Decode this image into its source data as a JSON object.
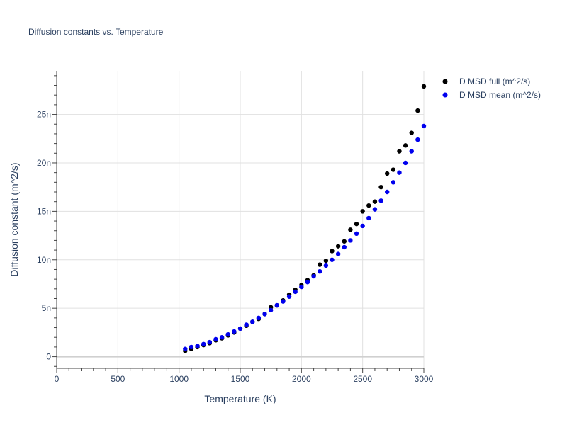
{
  "chart_data": {
    "type": "scatter",
    "title": "Diffusion constants vs. Temperature",
    "xlabel": "Temperature (K)",
    "ylabel": "Diffusion constant (m^2/s)",
    "xlim": [
      0,
      3000
    ],
    "ylim": [
      -1.2e-09,
      2.95e-08
    ],
    "x_ticks": [
      0,
      500,
      1000,
      1500,
      2000,
      2500,
      3000
    ],
    "x_tick_labels": [
      "0",
      "500",
      "1000",
      "1500",
      "2000",
      "2500",
      "3000"
    ],
    "y_ticks": [
      0,
      5e-09,
      1e-08,
      1.5e-08,
      2e-08,
      2.5e-08
    ],
    "y_tick_labels": [
      "0",
      "5n",
      "10n",
      "15n",
      "20n",
      "25n"
    ],
    "grid": true,
    "legend_position": "top-right",
    "series": [
      {
        "name": "D MSD full (m^2/s)",
        "color": "#000000",
        "x": [
          1050,
          1100,
          1150,
          1200,
          1250,
          1300,
          1350,
          1400,
          1450,
          1500,
          1550,
          1600,
          1650,
          1700,
          1750,
          1800,
          1850,
          1900,
          1950,
          2000,
          2050,
          2100,
          2150,
          2200,
          2250,
          2300,
          2350,
          2400,
          2450,
          2500,
          2550,
          2600,
          2650,
          2700,
          2750,
          2800,
          2850,
          2900,
          2950,
          3000
        ],
        "y": [
          6e-10,
          8e-10,
          1e-09,
          1.2e-09,
          1.4e-09,
          1.7e-09,
          1.9e-09,
          2.2e-09,
          2.5e-09,
          2.9e-09,
          3.2e-09,
          3.6e-09,
          3.9e-09,
          4.4e-09,
          5.1e-09,
          5.3e-09,
          5.8e-09,
          6.4e-09,
          6.9e-09,
          7.4e-09,
          7.9e-09,
          8.4e-09,
          9.5e-09,
          9.9e-09,
          1.09e-08,
          1.14e-08,
          1.19e-08,
          1.31e-08,
          1.37e-08,
          1.5e-08,
          1.56e-08,
          1.6e-08,
          1.75e-08,
          1.89e-08,
          1.93e-08,
          2.12e-08,
          2.18e-08,
          2.31e-08,
          2.54e-08,
          2.79e-08
        ]
      },
      {
        "name": "D MSD mean (m^2/s)",
        "color": "#0000ee",
        "x": [
          1050,
          1100,
          1150,
          1200,
          1250,
          1300,
          1350,
          1400,
          1450,
          1500,
          1550,
          1600,
          1650,
          1700,
          1750,
          1800,
          1850,
          1900,
          1950,
          2000,
          2050,
          2100,
          2150,
          2200,
          2250,
          2300,
          2350,
          2400,
          2450,
          2500,
          2550,
          2600,
          2650,
          2700,
          2750,
          2800,
          2850,
          2900,
          2950,
          3000
        ],
        "y": [
          8e-10,
          1e-09,
          1.1e-09,
          1.3e-09,
          1.5e-09,
          1.8e-09,
          2e-09,
          2.3e-09,
          2.6e-09,
          2.9e-09,
          3.3e-09,
          3.6e-09,
          4e-09,
          4.4e-09,
          4.8e-09,
          5.3e-09,
          5.7e-09,
          6.2e-09,
          6.7e-09,
          7.2e-09,
          7.7e-09,
          8.3e-09,
          8.8e-09,
          9.4e-09,
          1e-08,
          1.06e-08,
          1.13e-08,
          1.2e-08,
          1.27e-08,
          1.35e-08,
          1.43e-08,
          1.52e-08,
          1.61e-08,
          1.7e-08,
          1.8e-08,
          1.9e-08,
          2e-08,
          2.12e-08,
          2.24e-08,
          2.38e-08
        ]
      }
    ]
  }
}
